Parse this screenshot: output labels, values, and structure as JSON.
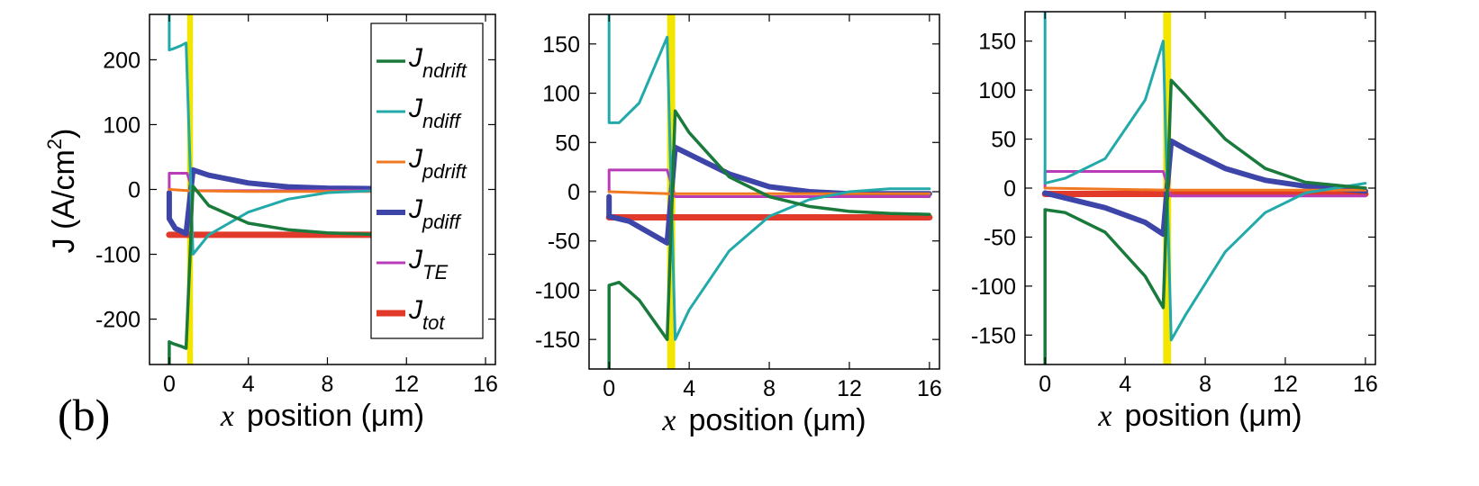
{
  "figure": {
    "panel_label": "(b)",
    "ylabel_parts": [
      "J (A/cm",
      "2",
      ")"
    ],
    "xlabel_var": "x",
    "xlabel_text": "position (μm)"
  },
  "legend": {
    "entries": [
      {
        "main": "J",
        "sub": "ndrift",
        "color": "#1a7a3c"
      },
      {
        "main": "J",
        "sub": "ndiff",
        "color": "#22aaaa"
      },
      {
        "main": "J",
        "sub": "pdrift",
        "color": "#f07820"
      },
      {
        "main": "J",
        "sub": "pdiff",
        "color": "#3d45a8"
      },
      {
        "main": "J",
        "sub": "TE",
        "color": "#b83cb8"
      },
      {
        "main": "J",
        "sub": "tot",
        "color": "#e23a2a"
      }
    ]
  },
  "chart_data": [
    {
      "type": "line",
      "xlabel": "x position (μm)",
      "ylabel": "J (A/cm2)",
      "xlim": [
        -1,
        16.5
      ],
      "ylim": [
        -270,
        270
      ],
      "xticks": [
        0,
        4,
        8,
        12,
        16
      ],
      "yticks": [
        -200,
        -100,
        0,
        100,
        200
      ],
      "highlight_band": {
        "x": [
          0.9,
          1.2
        ],
        "color": "#f2e600"
      },
      "grid": false,
      "legend_position": "top-right",
      "series": [
        {
          "name": "J ndrift",
          "color": "#1a7a3c",
          "points": [
            [
              0,
              -270
            ],
            [
              0,
              -235
            ],
            [
              0.2,
              -238
            ],
            [
              0.6,
              -242
            ],
            [
              0.85,
              -245
            ],
            [
              1.2,
              5
            ],
            [
              2,
              -25
            ],
            [
              4,
              -52
            ],
            [
              6,
              -62
            ],
            [
              8,
              -67
            ],
            [
              11,
              -70
            ]
          ]
        },
        {
          "name": "J ndiff",
          "color": "#22aaaa",
          "points": [
            [
              0,
              270
            ],
            [
              0,
              215
            ],
            [
              0.2,
              217
            ],
            [
              0.6,
              222
            ],
            [
              0.85,
              226
            ],
            [
              1.2,
              -100
            ],
            [
              2,
              -70
            ],
            [
              4,
              -35
            ],
            [
              6,
              -15
            ],
            [
              8,
              -5
            ],
            [
              11,
              -1
            ]
          ]
        },
        {
          "name": "J pdrift",
          "color": "#f07820",
          "points": [
            [
              0,
              0
            ],
            [
              1,
              -2
            ],
            [
              4,
              -3
            ],
            [
              8,
              -3
            ],
            [
              11,
              -3
            ]
          ]
        },
        {
          "name": "J pdiff",
          "color": "#3d45a8",
          "points": [
            [
              0,
              -5
            ],
            [
              0,
              -45
            ],
            [
              0.3,
              -60
            ],
            [
              0.85,
              -68
            ],
            [
              1.2,
              30
            ],
            [
              2,
              22
            ],
            [
              4,
              10
            ],
            [
              6,
              4
            ],
            [
              8,
              2
            ],
            [
              11,
              1
            ]
          ]
        },
        {
          "name": "J TE",
          "color": "#b83cb8",
          "points": [
            [
              0,
              0
            ],
            [
              0,
              25
            ],
            [
              0.9,
              25
            ],
            [
              1.2,
              -2
            ],
            [
              11,
              -2
            ]
          ]
        },
        {
          "name": "J tot",
          "color": "#e23a2a",
          "points": [
            [
              0,
              -70
            ],
            [
              11,
              -70
            ]
          ]
        }
      ]
    },
    {
      "type": "line",
      "xlabel": "x position (μm)",
      "ylabel": "",
      "xlim": [
        -1,
        16.5
      ],
      "ylim": [
        -180,
        180
      ],
      "xticks": [
        0,
        4,
        8,
        12,
        16
      ],
      "yticks": [
        -150,
        -100,
        -50,
        0,
        50,
        100,
        150
      ],
      "highlight_band": {
        "x": [
          2.9,
          3.3
        ],
        "color": "#f2e600"
      },
      "grid": false,
      "series": [
        {
          "name": "J ndrift",
          "color": "#1a7a3c",
          "points": [
            [
              0,
              -180
            ],
            [
              0,
              -95
            ],
            [
              0.5,
              -92
            ],
            [
              1.5,
              -110
            ],
            [
              2.9,
              -150
            ],
            [
              3.3,
              82
            ],
            [
              4,
              60
            ],
            [
              6,
              15
            ],
            [
              8,
              -5
            ],
            [
              10,
              -15
            ],
            [
              12,
              -20
            ],
            [
              14,
              -22
            ],
            [
              16,
              -23
            ]
          ]
        },
        {
          "name": "J ndiff",
          "color": "#22aaaa",
          "points": [
            [
              0,
              180
            ],
            [
              0,
              70
            ],
            [
              0.5,
              70
            ],
            [
              1.5,
              90
            ],
            [
              2.9,
              157
            ],
            [
              3.3,
              -150
            ],
            [
              4,
              -120
            ],
            [
              6,
              -60
            ],
            [
              8,
              -25
            ],
            [
              10,
              -8
            ],
            [
              12,
              0
            ],
            [
              14,
              3
            ],
            [
              16,
              3
            ]
          ]
        },
        {
          "name": "J pdrift",
          "color": "#f07820",
          "points": [
            [
              0,
              0
            ],
            [
              3,
              -2
            ],
            [
              16,
              -2
            ]
          ]
        },
        {
          "name": "J pdiff",
          "color": "#3d45a8",
          "points": [
            [
              0,
              -5
            ],
            [
              0,
              -25
            ],
            [
              1,
              -30
            ],
            [
              2.9,
              -52
            ],
            [
              3.3,
              45
            ],
            [
              4,
              38
            ],
            [
              6,
              18
            ],
            [
              8,
              5
            ],
            [
              10,
              0
            ],
            [
              12,
              -2
            ],
            [
              16,
              -2
            ]
          ]
        },
        {
          "name": "J TE",
          "color": "#b83cb8",
          "points": [
            [
              0,
              0
            ],
            [
              0,
              22
            ],
            [
              2.9,
              22
            ],
            [
              3.3,
              -5
            ],
            [
              16,
              -5
            ]
          ]
        },
        {
          "name": "J tot",
          "color": "#e23a2a",
          "points": [
            [
              0,
              -26
            ],
            [
              16,
              -26
            ]
          ]
        }
      ]
    },
    {
      "type": "line",
      "xlabel": "x position (μm)",
      "ylabel": "",
      "xlim": [
        -1,
        16.5
      ],
      "ylim": [
        -180,
        180
      ],
      "xticks": [
        0,
        4,
        8,
        12,
        16
      ],
      "yticks": [
        -150,
        -100,
        -50,
        0,
        50,
        100,
        150
      ],
      "highlight_band": {
        "x": [
          5.9,
          6.3
        ],
        "color": "#f2e600"
      },
      "grid": false,
      "series": [
        {
          "name": "J ndrift",
          "color": "#1a7a3c",
          "points": [
            [
              0,
              -180
            ],
            [
              0,
              -22
            ],
            [
              1,
              -25
            ],
            [
              3,
              -45
            ],
            [
              5,
              -90
            ],
            [
              5.9,
              -122
            ],
            [
              6.3,
              110
            ],
            [
              7,
              95
            ],
            [
              9,
              50
            ],
            [
              11,
              20
            ],
            [
              13,
              6
            ],
            [
              16,
              0
            ]
          ]
        },
        {
          "name": "J ndiff",
          "color": "#22aaaa",
          "points": [
            [
              0,
              180
            ],
            [
              0,
              5
            ],
            [
              1,
              10
            ],
            [
              3,
              30
            ],
            [
              5,
              90
            ],
            [
              5.9,
              150
            ],
            [
              6.3,
              -155
            ],
            [
              7,
              -130
            ],
            [
              9,
              -65
            ],
            [
              11,
              -25
            ],
            [
              13,
              -5
            ],
            [
              16,
              5
            ]
          ]
        },
        {
          "name": "J pdrift",
          "color": "#f07820",
          "points": [
            [
              0,
              0
            ],
            [
              6,
              -2
            ],
            [
              16,
              -2
            ]
          ]
        },
        {
          "name": "J pdiff",
          "color": "#3d45a8",
          "points": [
            [
              0,
              -5
            ],
            [
              1,
              -10
            ],
            [
              3,
              -20
            ],
            [
              5,
              -35
            ],
            [
              5.9,
              -47
            ],
            [
              6.3,
              48
            ],
            [
              7,
              40
            ],
            [
              9,
              20
            ],
            [
              11,
              8
            ],
            [
              13,
              2
            ],
            [
              16,
              -3
            ]
          ]
        },
        {
          "name": "J TE",
          "color": "#b83cb8",
          "points": [
            [
              0,
              0
            ],
            [
              0,
              17
            ],
            [
              5.9,
              17
            ],
            [
              6.3,
              -8
            ],
            [
              16,
              -8
            ]
          ]
        },
        {
          "name": "J tot",
          "color": "#e23a2a",
          "points": [
            [
              0,
              -6
            ],
            [
              16,
              -6
            ]
          ]
        }
      ]
    }
  ]
}
